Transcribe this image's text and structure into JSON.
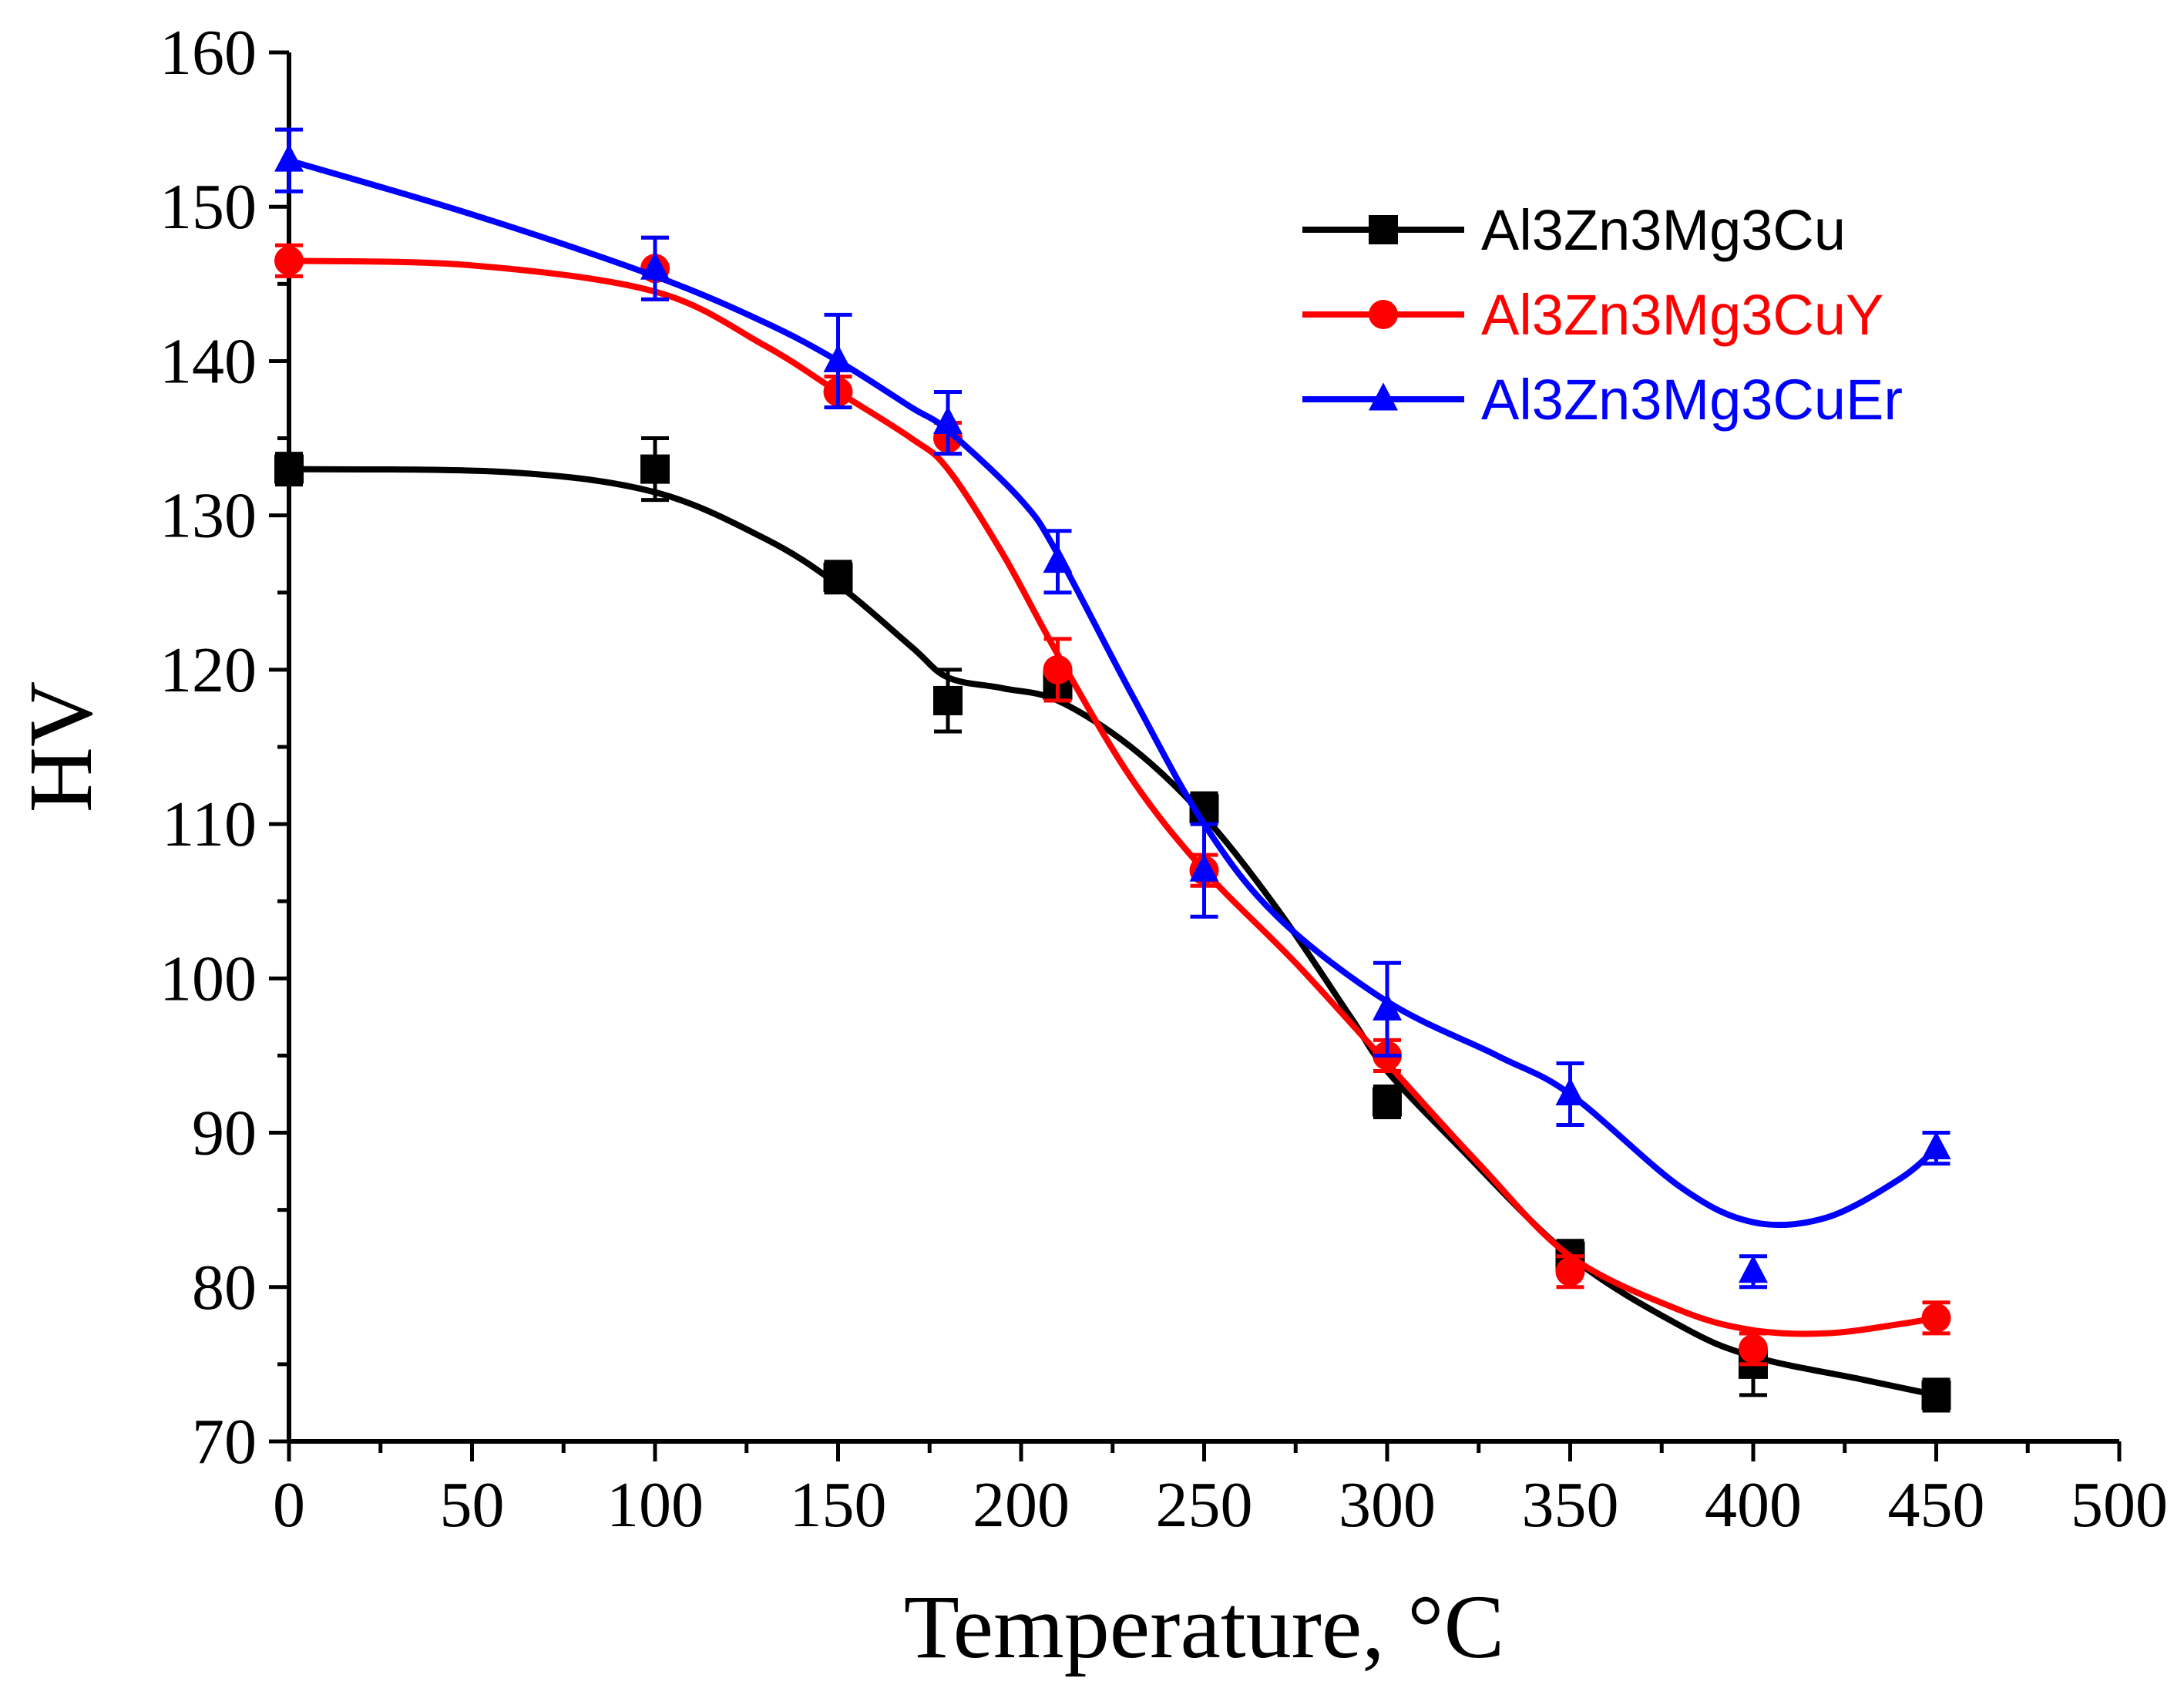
{
  "chart_data": {
    "type": "line",
    "title": "",
    "xlabel": "Temperature, °C",
    "ylabel": "HV",
    "xlim": [
      0,
      500
    ],
    "ylim": [
      70,
      160
    ],
    "xticks": [
      0,
      50,
      100,
      150,
      200,
      250,
      300,
      350,
      400,
      450,
      500
    ],
    "yticks": [
      70,
      80,
      90,
      100,
      110,
      120,
      130,
      140,
      150,
      160
    ],
    "legend_position": "top-right",
    "grid": false,
    "series": [
      {
        "name": "Al3Zn3Mg3Cu",
        "color": "#000000",
        "marker": "square",
        "x": [
          0,
          100,
          150,
          180,
          210,
          250,
          300,
          350,
          400,
          450
        ],
        "y": [
          133,
          133,
          126,
          118,
          119,
          111,
          92,
          82,
          75,
          73
        ],
        "err": [
          1.0,
          2.0,
          1.0,
          2.0,
          1.0,
          1.0,
          1.0,
          1.0,
          2.0,
          1.0
        ],
        "fit_x": [
          0,
          60,
          100,
          130,
          150,
          170,
          180,
          195,
          210,
          230,
          250,
          270,
          290,
          300,
          320,
          350,
          380,
          400,
          430,
          450
        ],
        "fit_y": [
          133,
          132.8,
          131.5,
          128.5,
          125.5,
          121.5,
          119.5,
          118.8,
          118,
          115,
          110.5,
          104.5,
          97.5,
          94,
          89,
          82,
          77.5,
          75.5,
          74,
          73
        ]
      },
      {
        "name": "Al3Zn3Mg3CuY",
        "color": "#ff0000",
        "marker": "circle",
        "x": [
          0,
          100,
          150,
          180,
          210,
          250,
          300,
          350,
          400,
          450
        ],
        "y": [
          146.5,
          146,
          138,
          135,
          120,
          107,
          95,
          81,
          76,
          78
        ],
        "err": [
          1.0,
          2.0,
          1.0,
          1.0,
          2.0,
          1.0,
          1.0,
          1.0,
          1.0,
          1.0
        ],
        "fit_x": [
          0,
          50,
          100,
          130,
          150,
          170,
          180,
          195,
          210,
          230,
          250,
          275,
          300,
          325,
          350,
          380,
          400,
          420,
          440,
          450
        ],
        "fit_y": [
          146.5,
          146.2,
          144.5,
          141,
          138,
          135,
          133,
          127.5,
          121,
          113,
          107,
          101,
          94.5,
          88,
          82,
          78.5,
          77.2,
          77,
          77.6,
          78
        ]
      },
      {
        "name": "Al3Zn3Mg3CuEr",
        "color": "#0000ff",
        "marker": "triangle",
        "x": [
          0,
          100,
          150,
          180,
          210,
          250,
          300,
          350,
          400,
          450
        ],
        "y": [
          153,
          146,
          140,
          136,
          127,
          107,
          98,
          92.5,
          81,
          89
        ],
        "err": [
          2.0,
          2.0,
          3.0,
          2.0,
          2.0,
          3.0,
          3.0,
          2.0,
          1.0,
          1.0
        ],
        "fit_x": [
          0,
          50,
          100,
          130,
          150,
          170,
          180,
          200,
          210,
          230,
          250,
          270,
          300,
          330,
          350,
          380,
          400,
          420,
          440,
          450
        ],
        "fit_y": [
          153,
          149.5,
          145.5,
          142.5,
          140,
          137,
          135.5,
          131,
          127.5,
          118.5,
          110,
          104,
          98.5,
          95,
          92.5,
          86.5,
          84.2,
          84.5,
          87,
          89
        ]
      }
    ]
  }
}
